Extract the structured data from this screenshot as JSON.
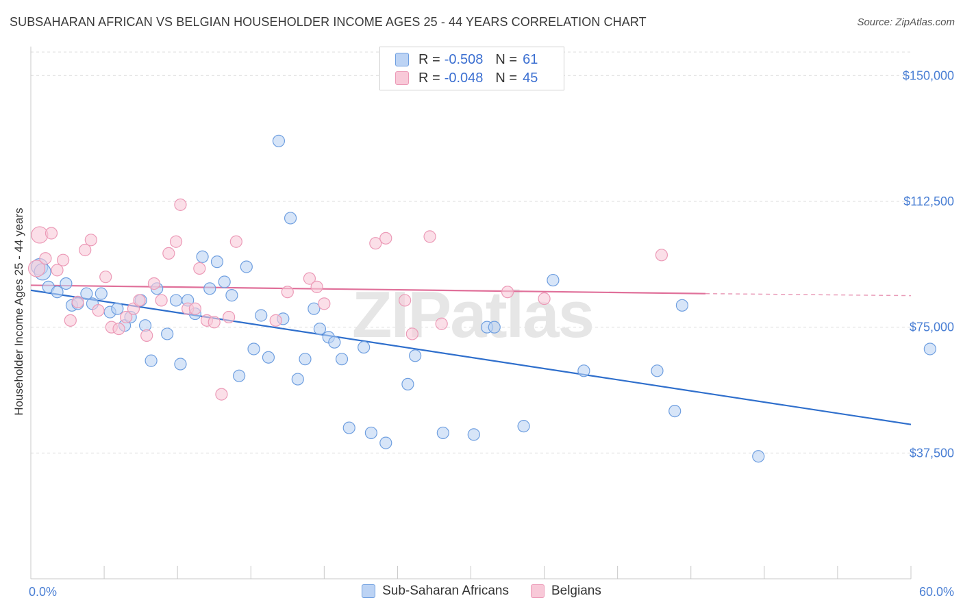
{
  "chart_data": {
    "type": "scatter",
    "title": "SUBSAHARAN AFRICAN VS BELGIAN HOUSEHOLDER INCOME AGES 25 - 44 YEARS CORRELATION CHART",
    "source": "Source: ZipAtlas.com",
    "ylabel": "Householder Income Ages 25 - 44 years",
    "xlabel": "",
    "xlim": [
      0,
      60
    ],
    "ylim": [
      0,
      157000
    ],
    "x_tick_labels": [
      "0.0%",
      "60.0%"
    ],
    "y_ticks": [
      {
        "value": 150000,
        "label": "$150,000"
      },
      {
        "value": 112500,
        "label": "$112,500"
      },
      {
        "value": 75000,
        "label": "$75,000"
      },
      {
        "value": 37500,
        "label": "$37,500"
      }
    ],
    "watermark": "ZIPatlas",
    "legend": [
      {
        "r_label": "R =",
        "r_value": "-0.508",
        "n_label": "N =",
        "n_value": "61"
      },
      {
        "r_label": "R =",
        "r_value": "-0.048",
        "n_label": "N =",
        "n_value": "45"
      }
    ],
    "series": [
      {
        "name": "Sub-Saharan Africans",
        "color": "#6f9fe0",
        "fill": "#bcd3f4",
        "line_color": "#2f6fcc",
        "trend": {
          "x0": 0,
          "y0": 86000,
          "x1": 60,
          "y1": 46000
        },
        "points": [
          [
            0.6,
            93000
          ],
          [
            1.2,
            87000
          ],
          [
            1.8,
            85500
          ],
          [
            2.4,
            88000
          ],
          [
            2.8,
            81500
          ],
          [
            3.2,
            82000
          ],
          [
            3.8,
            85000
          ],
          [
            4.2,
            82000
          ],
          [
            4.8,
            85000
          ],
          [
            5.4,
            79500
          ],
          [
            5.9,
            80500
          ],
          [
            6.4,
            75500
          ],
          [
            6.8,
            78000
          ],
          [
            7.5,
            83000
          ],
          [
            7.8,
            75500
          ],
          [
            8.2,
            65000
          ],
          [
            8.6,
            86500
          ],
          [
            9.3,
            73000
          ],
          [
            9.9,
            83000
          ],
          [
            10.2,
            64000
          ],
          [
            10.7,
            83000
          ],
          [
            11.2,
            79000
          ],
          [
            11.7,
            96000
          ],
          [
            12.2,
            86500
          ],
          [
            12.7,
            94500
          ],
          [
            13.2,
            88500
          ],
          [
            13.7,
            84500
          ],
          [
            14.2,
            60500
          ],
          [
            14.7,
            93000
          ],
          [
            15.2,
            68500
          ],
          [
            15.7,
            78500
          ],
          [
            16.2,
            66000
          ],
          [
            16.9,
            130500
          ],
          [
            17.2,
            77500
          ],
          [
            17.7,
            107500
          ],
          [
            18.2,
            59500
          ],
          [
            18.7,
            65500
          ],
          [
            19.3,
            80500
          ],
          [
            19.7,
            74500
          ],
          [
            20.3,
            72000
          ],
          [
            20.7,
            70500
          ],
          [
            21.2,
            65500
          ],
          [
            21.7,
            45000
          ],
          [
            22.7,
            69000
          ],
          [
            23.2,
            43500
          ],
          [
            24.2,
            40500
          ],
          [
            25.7,
            58000
          ],
          [
            26.2,
            66500
          ],
          [
            28.1,
            43500
          ],
          [
            30.2,
            43000
          ],
          [
            31.1,
            75000
          ],
          [
            31.6,
            75000
          ],
          [
            33.6,
            45500
          ],
          [
            35.6,
            89000
          ],
          [
            37.7,
            62000
          ],
          [
            42.7,
            62000
          ],
          [
            43.9,
            50000
          ],
          [
            44.4,
            81500
          ],
          [
            49.6,
            36500
          ],
          [
            61.3,
            68500
          ],
          [
            0.8,
            91500
          ]
        ]
      },
      {
        "name": "Belgians",
        "color": "#ec9ab7",
        "fill": "#f8c9d8",
        "line_color": "#e0709a",
        "trend": {
          "x0": 0,
          "y0": 87500,
          "x1": 46,
          "y1": 85000
        },
        "trend_dashed_to": {
          "x1": 60,
          "y1": 84400
        },
        "points": [
          [
            0.4,
            92500
          ],
          [
            0.6,
            102500
          ],
          [
            1.0,
            95500
          ],
          [
            1.4,
            103000
          ],
          [
            1.8,
            92000
          ],
          [
            2.2,
            95000
          ],
          [
            2.7,
            77000
          ],
          [
            3.2,
            82500
          ],
          [
            3.7,
            98000
          ],
          [
            4.1,
            101000
          ],
          [
            4.6,
            80000
          ],
          [
            5.1,
            90000
          ],
          [
            5.5,
            75000
          ],
          [
            6.0,
            74500
          ],
          [
            6.5,
            78000
          ],
          [
            7.0,
            80500
          ],
          [
            7.4,
            83000
          ],
          [
            7.9,
            72500
          ],
          [
            8.4,
            88000
          ],
          [
            8.9,
            83000
          ],
          [
            9.4,
            97000
          ],
          [
            9.9,
            100500
          ],
          [
            10.2,
            111500
          ],
          [
            10.7,
            80500
          ],
          [
            11.2,
            80500
          ],
          [
            11.5,
            92500
          ],
          [
            12.0,
            77000
          ],
          [
            12.5,
            76500
          ],
          [
            13.0,
            55000
          ],
          [
            13.5,
            78000
          ],
          [
            14.0,
            100500
          ],
          [
            16.7,
            77000
          ],
          [
            17.5,
            85500
          ],
          [
            19.0,
            89500
          ],
          [
            19.5,
            87000
          ],
          [
            20.0,
            82000
          ],
          [
            23.5,
            100000
          ],
          [
            24.2,
            101500
          ],
          [
            25.5,
            83000
          ],
          [
            26.0,
            73000
          ],
          [
            27.2,
            102000
          ],
          [
            28.0,
            76000
          ],
          [
            32.5,
            85500
          ],
          [
            35.0,
            83500
          ],
          [
            43.0,
            96500
          ]
        ]
      }
    ]
  }
}
